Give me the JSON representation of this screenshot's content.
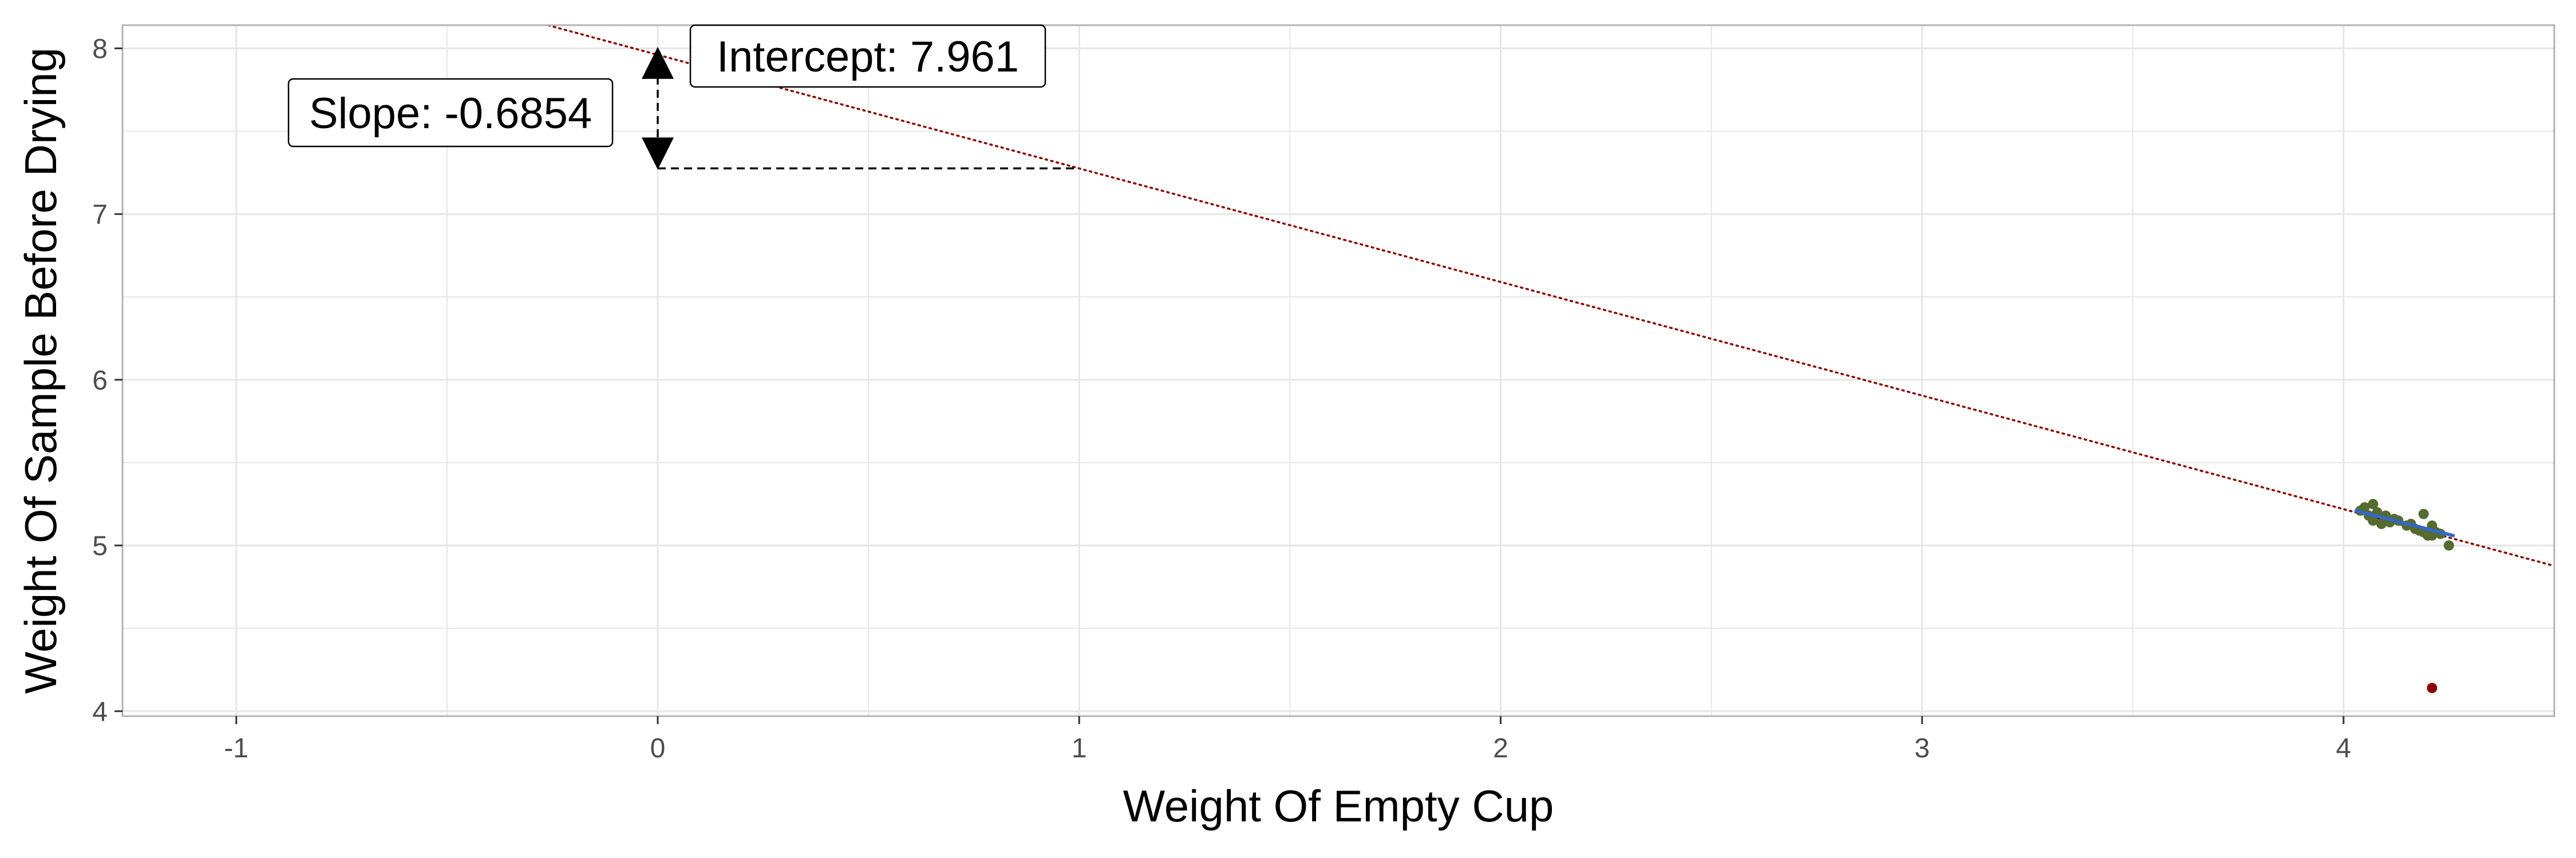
{
  "chart_data": {
    "type": "scatter",
    "title": "",
    "xlabel": "Weight Of Empty Cup",
    "ylabel": "Weight Of Sample Before Drying",
    "xlim": [
      -1.27,
      4.5
    ],
    "ylim": [
      3.97,
      8.14
    ],
    "x_ticks": [
      -1,
      0,
      1,
      2,
      3,
      4
    ],
    "x_tick_labels": [
      "-1",
      "0",
      "1",
      "2",
      "3",
      "4"
    ],
    "y_ticks": [
      4,
      5,
      6,
      7,
      8
    ],
    "y_tick_labels": [
      "4",
      "5",
      "6",
      "7",
      "8"
    ],
    "grid": true,
    "points": [
      {
        "x": 4.04,
        "y": 5.21
      },
      {
        "x": 4.05,
        "y": 5.23
      },
      {
        "x": 4.06,
        "y": 5.18
      },
      {
        "x": 4.07,
        "y": 5.25
      },
      {
        "x": 4.07,
        "y": 5.15
      },
      {
        "x": 4.08,
        "y": 5.2
      },
      {
        "x": 4.09,
        "y": 5.13
      },
      {
        "x": 4.1,
        "y": 5.18
      },
      {
        "x": 4.11,
        "y": 5.14
      },
      {
        "x": 4.12,
        "y": 5.16
      },
      {
        "x": 4.13,
        "y": 5.15
      },
      {
        "x": 4.15,
        "y": 5.12
      },
      {
        "x": 4.16,
        "y": 5.13
      },
      {
        "x": 4.17,
        "y": 5.1
      },
      {
        "x": 4.18,
        "y": 5.09
      },
      {
        "x": 4.19,
        "y": 5.19
      },
      {
        "x": 4.19,
        "y": 5.08
      },
      {
        "x": 4.2,
        "y": 5.06
      },
      {
        "x": 4.21,
        "y": 5.12
      },
      {
        "x": 4.21,
        "y": 5.06
      },
      {
        "x": 4.22,
        "y": 5.08
      },
      {
        "x": 4.23,
        "y": 5.07
      },
      {
        "x": 4.25,
        "y": 5.0
      }
    ],
    "outlier": {
      "x": 4.21,
      "y": 4.14
    },
    "fit_segment": {
      "x": [
        4.03,
        4.26
      ],
      "y": [
        5.21,
        5.06
      ]
    },
    "extended_line": {
      "slope": -0.6854,
      "intercept": 7.961
    },
    "annotations": {
      "slope_label": "Slope: -0.6854",
      "intercept_label": "Intercept: 7.961",
      "slope_run": [
        0,
        1
      ]
    },
    "colors": {
      "points": "#556b2f",
      "outlier": "#8b0000",
      "fit": "#3366cc",
      "extended_line": "#8b0000",
      "grid": "#e6e6e6",
      "panel_border": "#b3b3b3"
    }
  }
}
